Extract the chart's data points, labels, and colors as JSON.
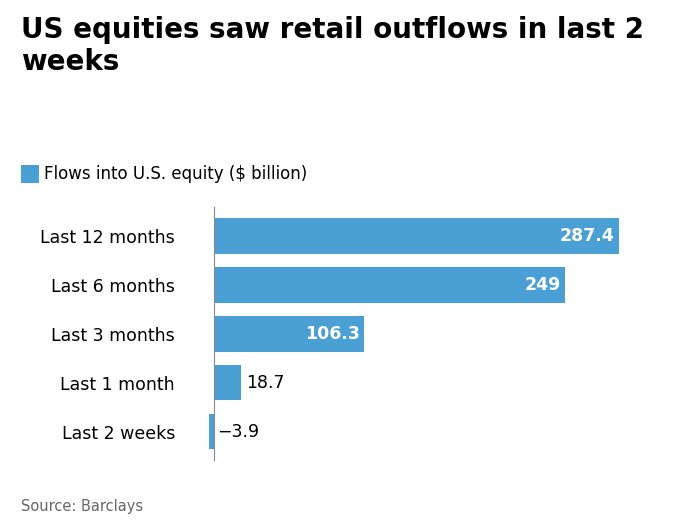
{
  "title": "US equities saw retail outflows in last 2 weeks",
  "legend_label": "Flows into U.S. equity ($ billion)",
  "source": "Source: Barclays",
  "categories": [
    "Last 12 months",
    "Last 6 months",
    "Last 3 months",
    "Last 1 month",
    "Last 2 weeks"
  ],
  "values": [
    287.4,
    249,
    106.3,
    18.7,
    -3.9
  ],
  "labels": [
    "287.4",
    "249",
    "106.3",
    "18.7",
    "−3.9"
  ],
  "bar_color": "#4a9fd4",
  "background_color": "#ffffff",
  "title_fontsize": 20,
  "legend_fontsize": 12,
  "category_fontsize": 12.5,
  "label_fontsize": 12.5,
  "source_fontsize": 10.5,
  "xlim": [
    -18,
    320
  ]
}
